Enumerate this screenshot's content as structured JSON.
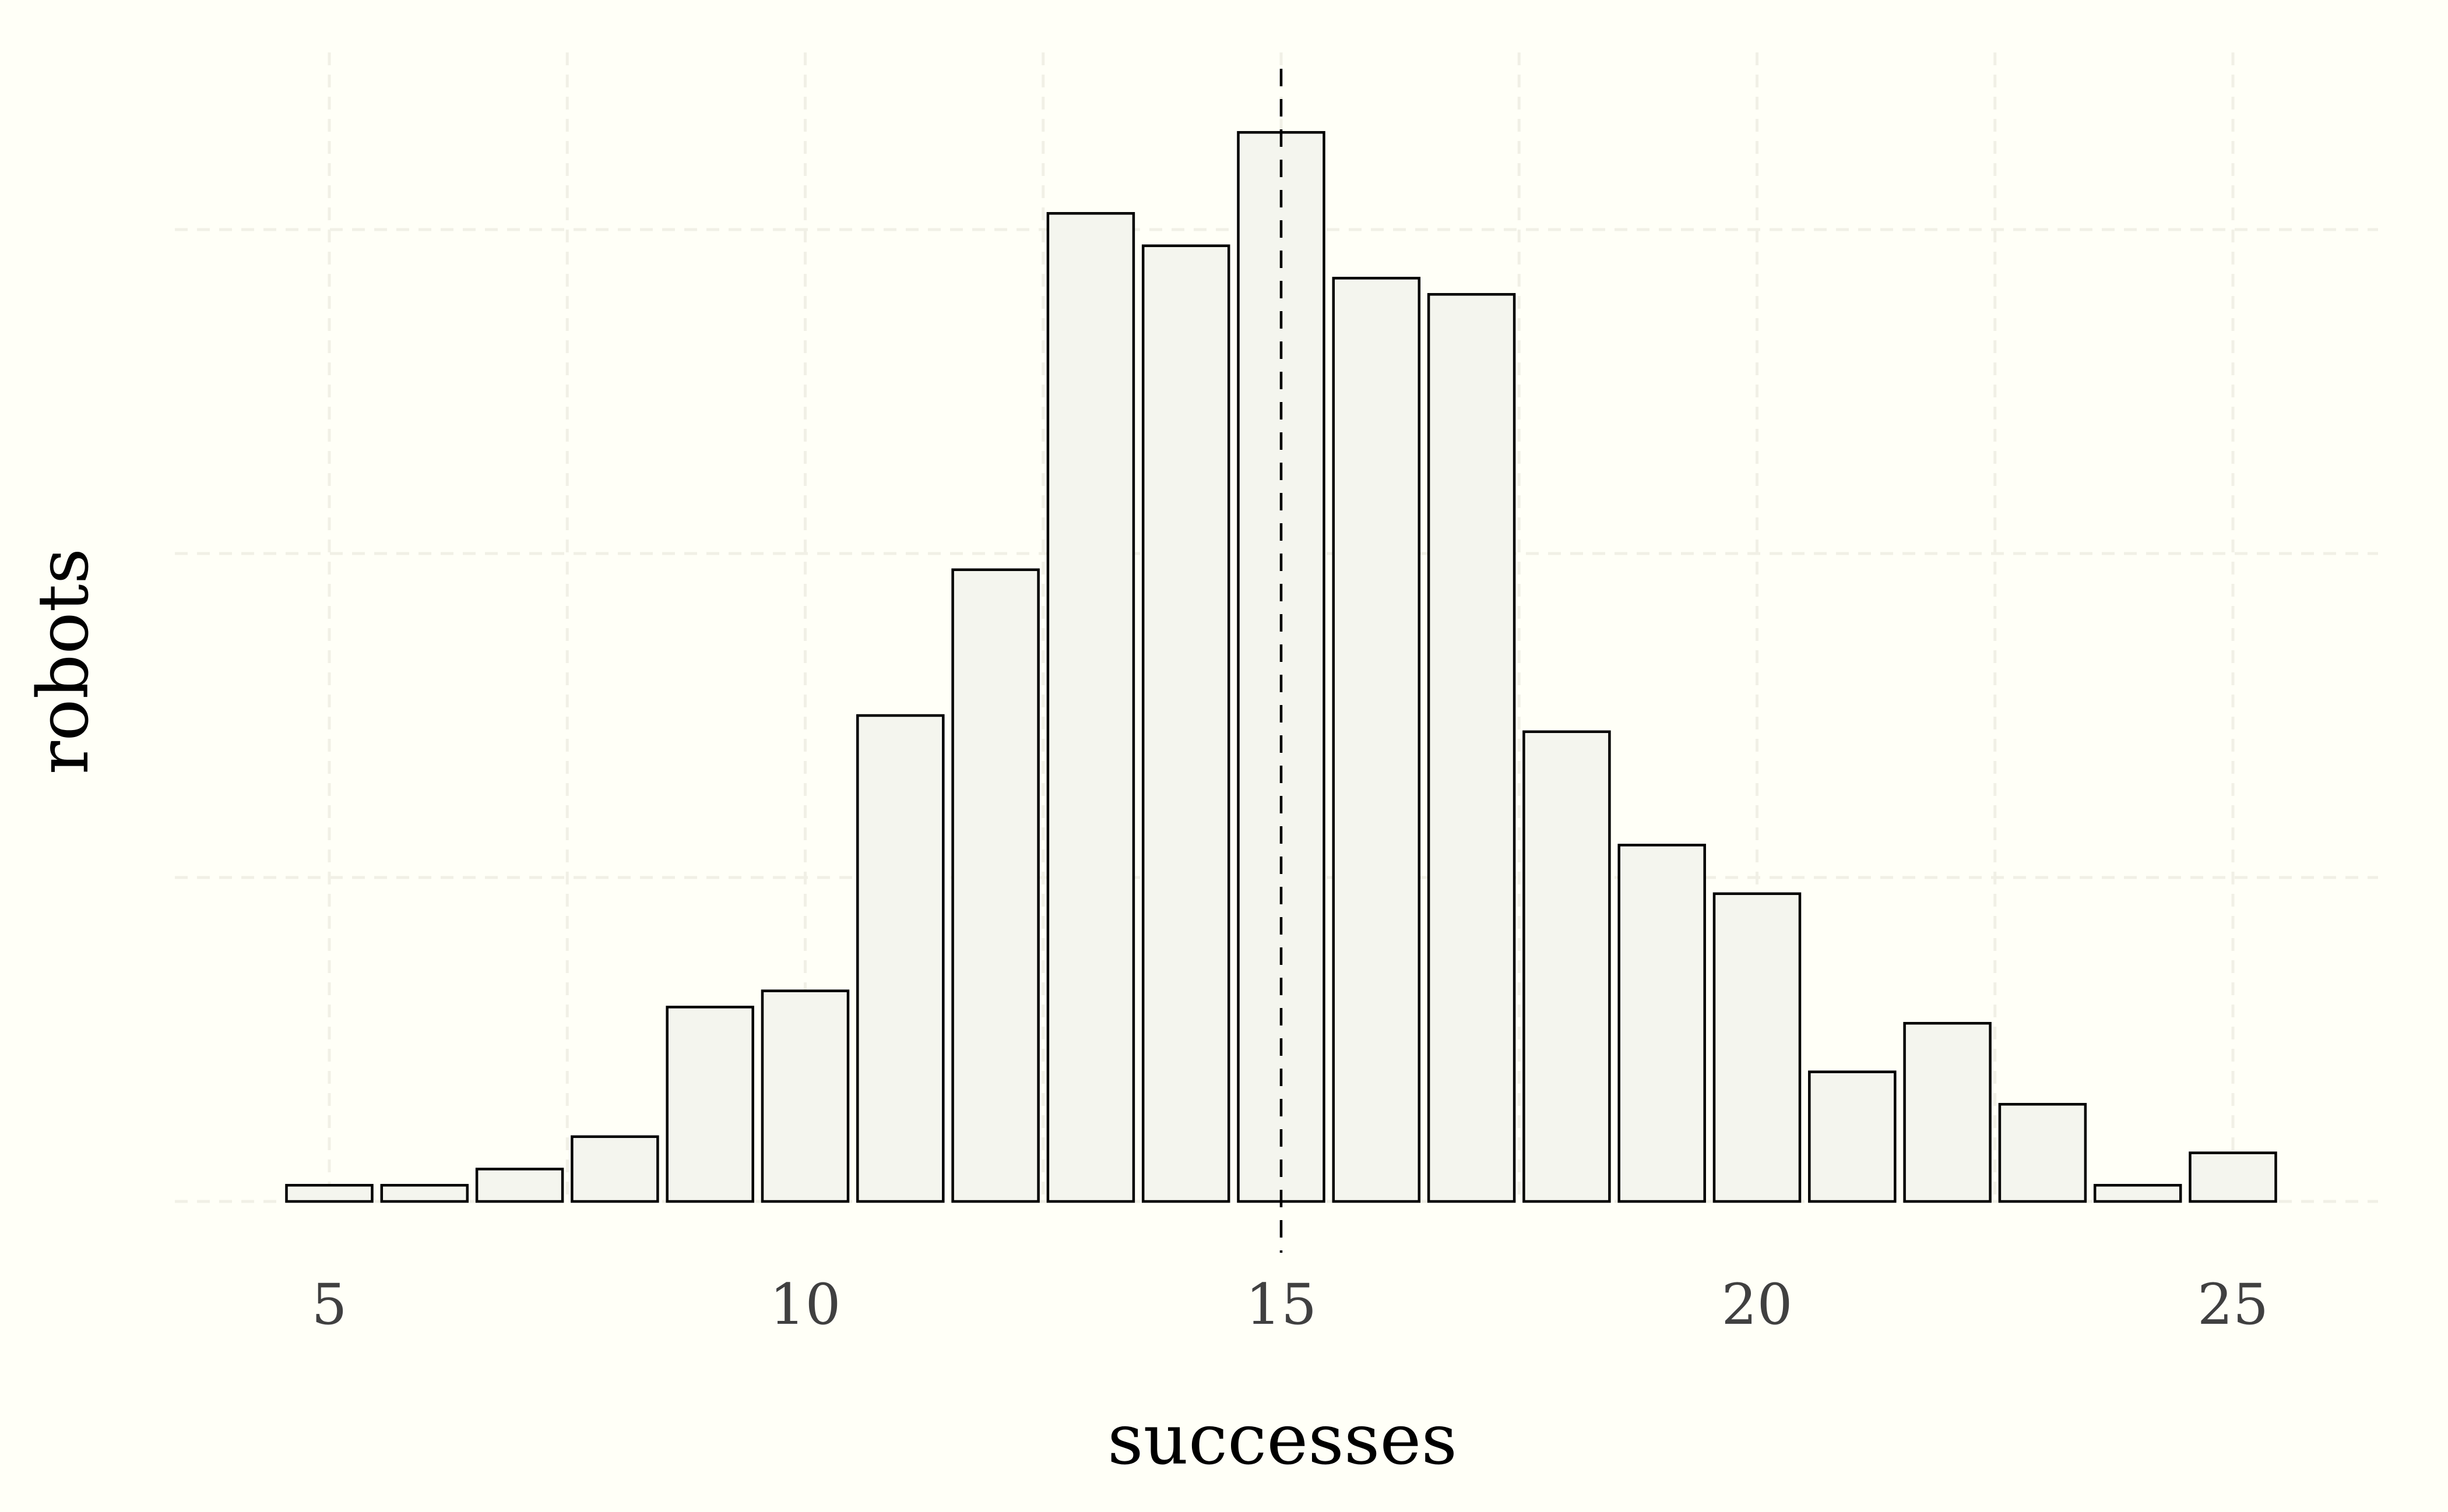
{
  "chart_data": {
    "type": "bar",
    "xlabel": "successes",
    "ylabel": "robots",
    "x_ticks": [
      "5",
      "10",
      "15",
      "20",
      "25"
    ],
    "xlim": [
      4.5,
      25.5
    ],
    "ylim": [
      0,
      68
    ],
    "y_ticks_shown": false,
    "grid": true,
    "reference_line": {
      "x": 15,
      "style": "dashed"
    },
    "categories": [
      5,
      6,
      7,
      8,
      9,
      10,
      11,
      12,
      13,
      14,
      15,
      16,
      17,
      18,
      19,
      20,
      21,
      22,
      23,
      24,
      25
    ],
    "values": [
      1,
      1,
      2,
      4,
      12,
      13,
      30,
      39,
      61,
      59,
      66,
      57,
      56,
      29,
      22,
      19,
      8,
      11,
      6,
      1,
      3
    ],
    "colors": {
      "background": "#fffff7",
      "bar_fill": "#f4f5ee",
      "bar_stroke": "#000000",
      "grid": "#f1f0e6",
      "tick_text": "#404040"
    }
  }
}
